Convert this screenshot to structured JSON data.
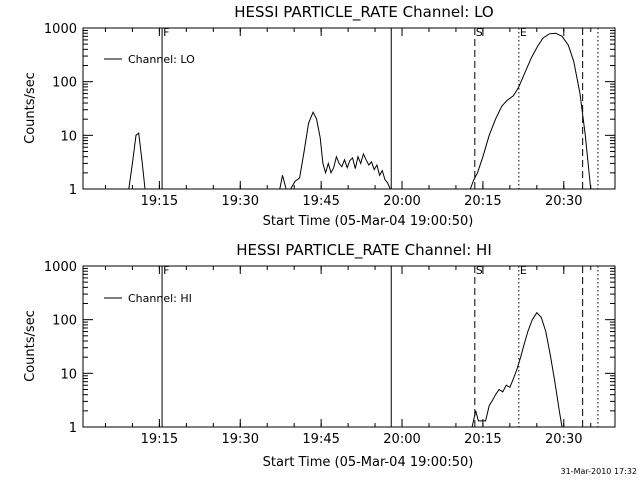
{
  "chart_data": [
    {
      "type": "line",
      "title": "HESSI PARTICLE_RATE Channel: LO",
      "xlabel": "Start Time (05-Mar-04 19:00:50)",
      "ylabel": "Counts/sec",
      "y_scale": "log",
      "ylim": [
        1,
        1000
      ],
      "xlim": [
        "19:00:50",
        "20:39:30"
      ],
      "x_tick_labels": [
        "19:15",
        "19:30",
        "19:45",
        "20:00",
        "20:15",
        "20:30"
      ],
      "y_tick_labels": [
        "1",
        "10",
        "100",
        "1000"
      ],
      "legend": {
        "entries": [
          "Channel: LO"
        ],
        "placement": "top-left"
      },
      "markers": [
        {
          "time": "19:15:30",
          "label": "F",
          "style": "solid"
        },
        {
          "time": "19:58:00",
          "label": "",
          "style": "solid"
        },
        {
          "time": "20:13:30",
          "label": "S",
          "style": "dashed"
        },
        {
          "time": "20:21:40",
          "label": "E",
          "style": "dotted"
        },
        {
          "time": "20:33:30",
          "label": "",
          "style": "dashed"
        },
        {
          "time": "20:36:20",
          "label": "",
          "style": "dotted"
        }
      ],
      "series": [
        {
          "name": "Channel: LO",
          "segments": [
            {
              "x": [
                "19:09:20",
                "19:10:00",
                "19:10:40",
                "19:11:10",
                "19:11:50",
                "19:12:20"
              ],
              "y": [
                1,
                3,
                10,
                11,
                3,
                1
              ]
            },
            {
              "x": [
                "19:37:20",
                "19:37:50",
                "19:38:30",
                "19:39:20",
                "19:40:10",
                "19:41:00",
                "19:41:50",
                "19:42:40",
                "19:43:30",
                "19:44:10",
                "19:44:50",
                "19:45:20",
                "19:45:50",
                "19:46:20",
                "19:46:50",
                "19:47:20",
                "19:47:50",
                "19:48:20",
                "19:48:50",
                "19:49:20",
                "19:49:50",
                "19:50:20",
                "19:50:50",
                "19:51:20",
                "19:51:50",
                "19:52:20",
                "19:52:50",
                "19:53:20",
                "19:53:50",
                "19:54:20",
                "19:54:50",
                "19:55:20",
                "19:55:50",
                "19:56:20",
                "19:56:50",
                "19:57:20",
                "19:57:50"
              ],
              "y": [
                1,
                1.8,
                1,
                1,
                1.4,
                1.6,
                5,
                17,
                27,
                20,
                9,
                3,
                2,
                3,
                2,
                2.5,
                4,
                3,
                2.6,
                3.5,
                2.5,
                3.4,
                3.8,
                2.4,
                4,
                3,
                4.5,
                3.5,
                2.8,
                3.2,
                2.3,
                2.8,
                1.8,
                2.2,
                1.5,
                1.3,
                1
              ]
            },
            {
              "x": [
                "20:12:40",
                "20:13:20",
                "20:14:00",
                "20:15:00",
                "20:16:10",
                "20:17:20",
                "20:18:30",
                "20:19:30",
                "20:20:40",
                "20:21:40",
                "20:22:50",
                "20:24:00",
                "20:25:10",
                "20:26:10",
                "20:27:20",
                "20:28:30",
                "20:29:40",
                "20:30:50",
                "20:31:50",
                "20:33:00",
                "20:34:00",
                "20:35:00"
              ],
              "y": [
                1,
                1.5,
                2,
                4,
                10,
                20,
                35,
                45,
                55,
                80,
                150,
                280,
                460,
                650,
                780,
                800,
                700,
                480,
                240,
                60,
                10,
                1
              ]
            }
          ]
        }
      ]
    },
    {
      "type": "line",
      "title": "HESSI PARTICLE_RATE Channel: HI",
      "xlabel": "Start Time (05-Mar-04 19:00:50)",
      "ylabel": "Counts/sec",
      "y_scale": "log",
      "ylim": [
        1,
        1000
      ],
      "xlim": [
        "19:00:50",
        "20:39:30"
      ],
      "x_tick_labels": [
        "19:15",
        "19:30",
        "19:45",
        "20:00",
        "20:15",
        "20:30"
      ],
      "y_tick_labels": [
        "1",
        "10",
        "100",
        "1000"
      ],
      "legend": {
        "entries": [
          "Channel: HI"
        ],
        "placement": "top-left"
      },
      "markers": [
        {
          "time": "19:15:30",
          "label": "F",
          "style": "solid"
        },
        {
          "time": "19:58:00",
          "label": "",
          "style": "solid"
        },
        {
          "time": "20:13:30",
          "label": "S",
          "style": "dashed"
        },
        {
          "time": "20:21:40",
          "label": "E",
          "style": "dotted"
        },
        {
          "time": "20:33:30",
          "label": "",
          "style": "dashed"
        },
        {
          "time": "20:36:20",
          "label": "",
          "style": "dotted"
        }
      ],
      "series": [
        {
          "name": "Channel: HI",
          "segments": [
            {
              "x": [
                "20:13:00",
                "20:13:40",
                "20:14:10",
                "20:14:50",
                "20:15:30",
                "20:16:10",
                "20:16:40",
                "20:17:20",
                "20:18:00",
                "20:18:40",
                "20:19:20",
                "20:20:00",
                "20:20:40",
                "20:21:20",
                "20:22:00",
                "20:22:40",
                "20:23:20",
                "20:24:10",
                "20:25:00",
                "20:25:50",
                "20:26:40",
                "20:27:30",
                "20:28:20",
                "20:29:10",
                "20:29:40"
              ],
              "y": [
                1,
                2,
                1.3,
                1.3,
                1.3,
                2.5,
                3,
                4,
                5,
                4.5,
                6,
                5.5,
                8,
                12,
                20,
                35,
                60,
                100,
                135,
                110,
                60,
                22,
                7,
                2,
                1
              ]
            }
          ]
        }
      ]
    }
  ],
  "footer": {
    "timestamp": "31-Mar-2010 17:32"
  }
}
